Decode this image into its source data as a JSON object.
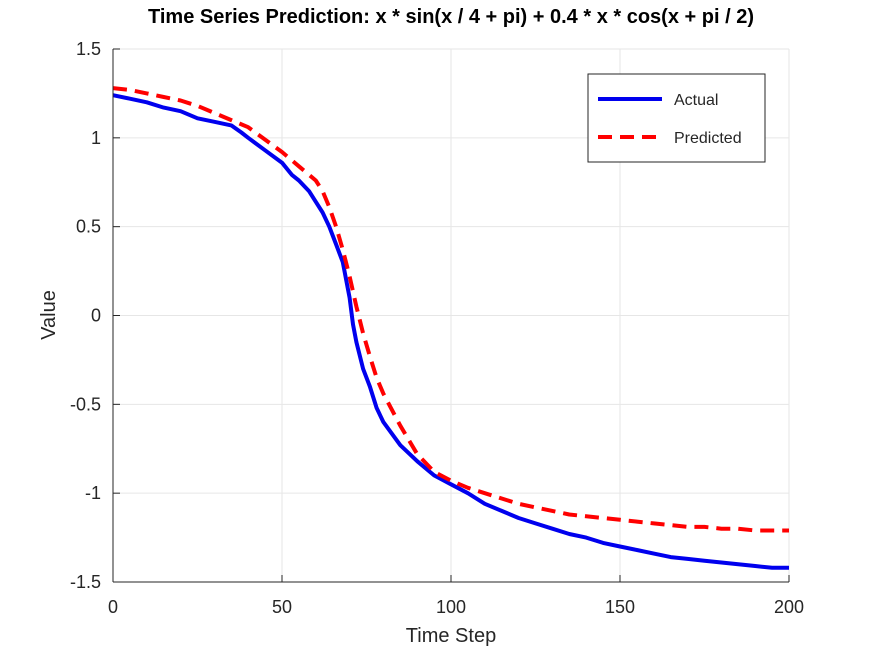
{
  "chart_data": {
    "type": "line",
    "title": "Time Series Prediction: x * sin(x / 4 + pi) + 0.4 * x * cos(x + pi / 2)",
    "xlabel": "Time Step",
    "ylabel": "Value",
    "xlim": [
      0,
      200
    ],
    "ylim": [
      -1.5,
      1.5
    ],
    "xticks": [
      0,
      50,
      100,
      150,
      200
    ],
    "yticks": [
      -1.5,
      -1,
      -0.5,
      0,
      0.5,
      1,
      1.5
    ],
    "xtick_labels": [
      "0",
      "50",
      "100",
      "150",
      "200"
    ],
    "ytick_labels": [
      "-1.5",
      "-1",
      "-0.5",
      "0",
      "0.5",
      "1",
      "1.5"
    ],
    "grid": true,
    "legend_position": "top-right",
    "series": [
      {
        "name": "Actual",
        "color": "#0000ee",
        "style": "solid",
        "x": [
          0,
          5,
          10,
          15,
          20,
          25,
          30,
          35,
          38,
          40,
          45,
          50,
          53,
          55,
          58,
          60,
          62,
          64,
          66,
          68,
          70,
          71,
          72,
          74,
          76,
          78,
          80,
          85,
          90,
          95,
          100,
          105,
          110,
          115,
          120,
          125,
          130,
          135,
          140,
          145,
          150,
          155,
          160,
          165,
          170,
          175,
          180,
          185,
          190,
          195,
          200
        ],
        "y": [
          1.24,
          1.22,
          1.2,
          1.17,
          1.15,
          1.11,
          1.09,
          1.07,
          1.03,
          1.0,
          0.93,
          0.86,
          0.79,
          0.76,
          0.7,
          0.64,
          0.58,
          0.5,
          0.4,
          0.3,
          0.1,
          -0.05,
          -0.15,
          -0.3,
          -0.4,
          -0.52,
          -0.6,
          -0.73,
          -0.82,
          -0.9,
          -0.95,
          -1.0,
          -1.06,
          -1.1,
          -1.14,
          -1.17,
          -1.2,
          -1.23,
          -1.25,
          -1.28,
          -1.3,
          -1.32,
          -1.34,
          -1.36,
          -1.37,
          -1.38,
          -1.39,
          -1.4,
          -1.41,
          -1.42,
          -1.42
        ]
      },
      {
        "name": "Predicted",
        "color": "#ff0000",
        "style": "dashed",
        "x": [
          0,
          5,
          10,
          15,
          20,
          25,
          30,
          35,
          40,
          45,
          50,
          55,
          60,
          62,
          64,
          66,
          68,
          70,
          72,
          74,
          76,
          78,
          80,
          85,
          90,
          95,
          100,
          105,
          110,
          115,
          120,
          125,
          130,
          135,
          140,
          145,
          150,
          155,
          160,
          165,
          170,
          175,
          180,
          185,
          190,
          195,
          200
        ],
        "y": [
          1.28,
          1.27,
          1.25,
          1.23,
          1.21,
          1.18,
          1.14,
          1.1,
          1.06,
          0.99,
          0.92,
          0.84,
          0.76,
          0.7,
          0.61,
          0.5,
          0.37,
          0.22,
          0.05,
          -0.1,
          -0.23,
          -0.35,
          -0.44,
          -0.62,
          -0.78,
          -0.88,
          -0.93,
          -0.97,
          -1.0,
          -1.03,
          -1.06,
          -1.08,
          -1.1,
          -1.12,
          -1.13,
          -1.14,
          -1.15,
          -1.16,
          -1.17,
          -1.18,
          -1.19,
          -1.19,
          -1.2,
          -1.2,
          -1.21,
          -1.21,
          -1.21
        ]
      }
    ]
  }
}
